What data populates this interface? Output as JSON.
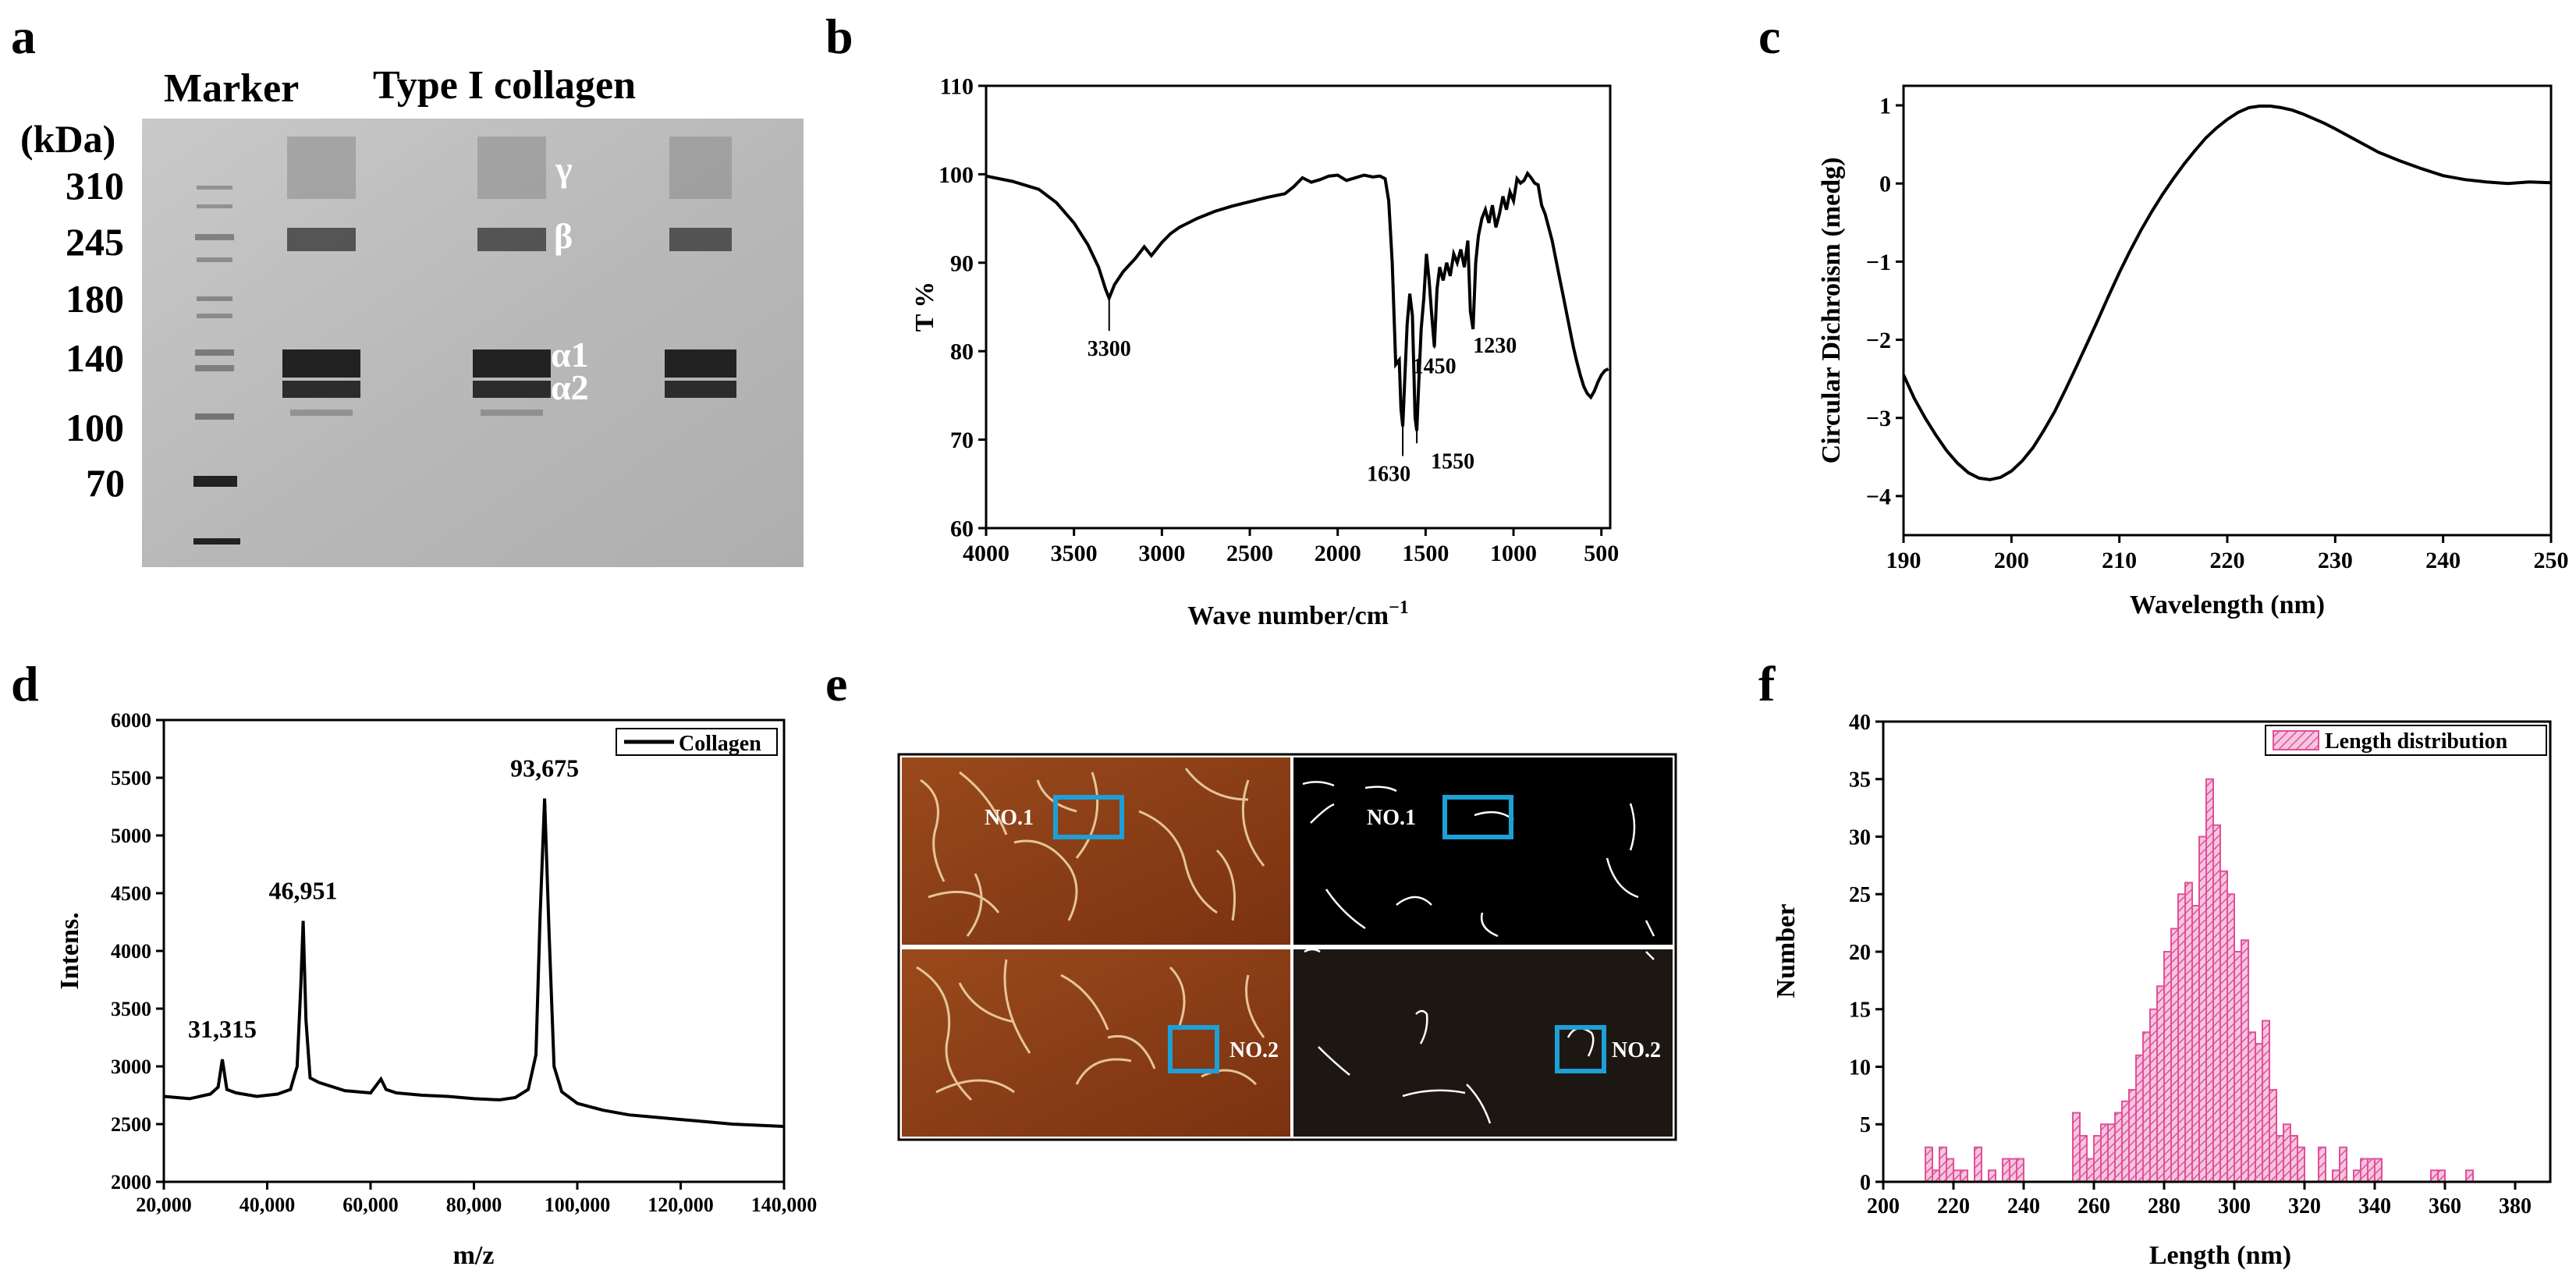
{
  "chart_data": [
    {
      "panel": "a",
      "type": "other",
      "description_free": true,
      "header_marker": "Marker",
      "header_sample": "Type I collagen",
      "unit_label": "(kDa)",
      "marker_sizes": [
        "310",
        "245",
        "180",
        "140",
        "100",
        "70"
      ],
      "band_labels": [
        "γ",
        "β",
        "α1",
        "α2"
      ]
    },
    {
      "panel": "b",
      "type": "line",
      "title": "",
      "xlabel": "Wave number/cm",
      "xlabel_sup": "−1",
      "ylabel": "T %",
      "xlim": [
        4000,
        450
      ],
      "ylim": [
        60,
        110
      ],
      "xticks": [
        4000,
        3500,
        3000,
        2500,
        2000,
        1500,
        1000,
        500
      ],
      "yticks": [
        60,
        70,
        80,
        90,
        100,
        110
      ],
      "x": [
        4000,
        3850,
        3700,
        3600,
        3500,
        3420,
        3360,
        3320,
        3300,
        3270,
        3220,
        3150,
        3100,
        3060,
        3000,
        2950,
        2900,
        2800,
        2700,
        2600,
        2500,
        2400,
        2300,
        2250,
        2200,
        2150,
        2100,
        2050,
        2000,
        1950,
        1900,
        1850,
        1800,
        1760,
        1730,
        1710,
        1690,
        1670,
        1650,
        1640,
        1630,
        1620,
        1605,
        1590,
        1575,
        1560,
        1550,
        1540,
        1525,
        1510,
        1495,
        1480,
        1465,
        1450,
        1435,
        1420,
        1400,
        1380,
        1360,
        1340,
        1320,
        1300,
        1280,
        1260,
        1245,
        1230,
        1215,
        1200,
        1180,
        1160,
        1140,
        1120,
        1100,
        1080,
        1060,
        1040,
        1020,
        1000,
        980,
        960,
        940,
        920,
        900,
        880,
        860,
        840,
        820,
        800,
        780,
        760,
        740,
        720,
        700,
        680,
        660,
        640,
        620,
        600,
        580,
        560,
        540,
        520,
        500,
        480,
        460
      ],
      "y": [
        99.8,
        99.2,
        98.3,
        96.8,
        94.5,
        92.0,
        89.5,
        87.0,
        86.0,
        87.5,
        89.0,
        90.5,
        91.8,
        90.8,
        92.3,
        93.3,
        94.0,
        95.0,
        95.8,
        96.4,
        96.9,
        97.4,
        97.8,
        98.6,
        99.6,
        99.1,
        99.4,
        99.8,
        99.9,
        99.3,
        99.6,
        99.9,
        99.7,
        99.8,
        99.5,
        97.0,
        90.0,
        78.5,
        79.0,
        73.5,
        71.5,
        76.0,
        83.0,
        86.5,
        84.0,
        72.5,
        71.0,
        76.0,
        82.5,
        86.0,
        91.0,
        88.0,
        84.0,
        80.5,
        87.0,
        89.5,
        88.0,
        90.0,
        88.5,
        91.0,
        90.0,
        91.5,
        89.5,
        92.5,
        84.5,
        82.5,
        90.0,
        93.0,
        95.0,
        96.0,
        94.5,
        96.5,
        94.0,
        95.5,
        97.5,
        96.0,
        98.0,
        97.0,
        99.5,
        99.0,
        99.3,
        100.1,
        99.6,
        99.0,
        98.8,
        96.5,
        95.5,
        94.0,
        92.5,
        90.5,
        88.5,
        86.5,
        84.5,
        82.5,
        80.5,
        78.8,
        77.3,
        76.0,
        75.2,
        74.8,
        75.5,
        76.5,
        77.3,
        77.8,
        78.0
      ],
      "annotations": [
        {
          "label": "3300",
          "x": 3300,
          "y": 86.0
        },
        {
          "label": "1630",
          "x": 1630,
          "y": 71.5
        },
        {
          "label": "1550",
          "x": 1550,
          "y": 71.0
        },
        {
          "label": "1450",
          "x": 1450,
          "y": 80.5
        },
        {
          "label": "1230",
          "x": 1230,
          "y": 82.5
        }
      ]
    },
    {
      "panel": "c",
      "type": "line",
      "title": "",
      "xlabel": "Wavelength (nm)",
      "ylabel": "Circular Dichroism (medg)",
      "xlim": [
        190,
        250
      ],
      "ylim": [
        -4.5,
        1.25
      ],
      "xticks": [
        190,
        200,
        210,
        220,
        230,
        240,
        250
      ],
      "yticks": [
        -4,
        -3,
        -2,
        -1,
        0,
        1
      ],
      "x": [
        190,
        191,
        192,
        193,
        194,
        195,
        196,
        197,
        198,
        199,
        200,
        201,
        202,
        203,
        204,
        205,
        206,
        207,
        208,
        209,
        210,
        211,
        212,
        213,
        214,
        215,
        216,
        217,
        218,
        219,
        220,
        221,
        222,
        223,
        224,
        225,
        226,
        227,
        228,
        229,
        230,
        232,
        234,
        236,
        238,
        240,
        242,
        244,
        246,
        248,
        250
      ],
      "y": [
        -2.45,
        -2.75,
        -3.0,
        -3.22,
        -3.42,
        -3.58,
        -3.7,
        -3.77,
        -3.79,
        -3.76,
        -3.68,
        -3.55,
        -3.38,
        -3.16,
        -2.92,
        -2.64,
        -2.35,
        -2.05,
        -1.75,
        -1.44,
        -1.14,
        -0.86,
        -0.6,
        -0.36,
        -0.14,
        0.06,
        0.25,
        0.42,
        0.58,
        0.71,
        0.82,
        0.91,
        0.97,
        0.99,
        0.99,
        0.97,
        0.94,
        0.89,
        0.83,
        0.77,
        0.7,
        0.55,
        0.4,
        0.29,
        0.19,
        0.1,
        0.05,
        0.02,
        0.0,
        0.02,
        0.01
      ]
    },
    {
      "panel": "d",
      "type": "line",
      "title": "",
      "xlabel": "m/z",
      "ylabel": "Intens.",
      "xlim": [
        20000,
        140000
      ],
      "ylim": [
        2000,
        6000
      ],
      "xticks": [
        20000,
        40000,
        60000,
        80000,
        100000,
        120000,
        140000
      ],
      "xtick_labels": [
        "20,000",
        "40,000",
        "60,000",
        "80,000",
        "100,000",
        "120,000",
        "140,000"
      ],
      "yticks": [
        2000,
        2500,
        3000,
        3500,
        4000,
        4500,
        5000,
        5500,
        6000
      ],
      "legend": [
        "Collagen"
      ],
      "legend_position": "top-right",
      "x": [
        20000,
        25000,
        29000,
        30500,
        31315,
        32200,
        34000,
        38000,
        42000,
        44500,
        45800,
        46500,
        46951,
        47500,
        48300,
        50000,
        55000,
        60000,
        62000,
        63000,
        65000,
        70000,
        75000,
        80000,
        85000,
        88000,
        90500,
        92000,
        92800,
        93675,
        94500,
        95500,
        97000,
        100000,
        105000,
        110000,
        115000,
        120000,
        125000,
        130000,
        135000,
        140000
      ],
      "y": [
        2740,
        2720,
        2760,
        2820,
        3060,
        2800,
        2770,
        2740,
        2760,
        2800,
        3000,
        3700,
        4260,
        3400,
        2900,
        2860,
        2790,
        2770,
        2890,
        2800,
        2770,
        2750,
        2740,
        2720,
        2710,
        2730,
        2800,
        3100,
        4300,
        5320,
        4200,
        3000,
        2780,
        2680,
        2620,
        2580,
        2560,
        2540,
        2520,
        2500,
        2490,
        2480
      ],
      "annotations": [
        {
          "label": "31,315",
          "x": 31315,
          "y": 3060
        },
        {
          "label": "46,951",
          "x": 46951,
          "y": 4260
        },
        {
          "label": "93,675",
          "x": 93675,
          "y": 5320
        }
      ]
    },
    {
      "panel": "e",
      "type": "other",
      "labels": [
        "NO.1",
        "NO.1",
        "NO.2",
        "NO.2"
      ],
      "colors": {
        "afm": "#8a3c14",
        "afm_dark": "#5e220a",
        "mask": "#000000",
        "mask2": "#1d1714",
        "highlight": "#1e9fd6"
      }
    },
    {
      "panel": "f",
      "type": "bar",
      "title": "",
      "xlabel": "Length (nm)",
      "ylabel": "Number",
      "xlim": [
        200,
        390
      ],
      "ylim": [
        0,
        40
      ],
      "xticks": [
        200,
        220,
        240,
        260,
        280,
        300,
        320,
        340,
        360,
        380
      ],
      "yticks": [
        0,
        5,
        10,
        15,
        20,
        25,
        30,
        35,
        40
      ],
      "legend": [
        "Length distribution"
      ],
      "legend_position": "top-right",
      "bin_width": 2,
      "bin_starts": [
        212,
        214,
        216,
        218,
        220,
        222,
        224,
        226,
        228,
        230,
        232,
        234,
        236,
        238,
        240,
        242,
        244,
        246,
        248,
        250,
        252,
        254,
        256,
        258,
        260,
        262,
        264,
        266,
        268,
        270,
        272,
        274,
        276,
        278,
        280,
        282,
        284,
        286,
        288,
        290,
        292,
        294,
        296,
        298,
        300,
        302,
        304,
        306,
        308,
        310,
        312,
        314,
        316,
        318,
        320,
        322,
        324,
        326,
        328,
        330,
        332,
        334,
        336,
        338,
        340,
        342,
        344,
        346,
        348,
        350,
        352,
        354,
        356,
        358,
        360,
        362,
        364,
        366,
        368,
        370,
        372,
        374,
        376,
        378
      ],
      "values": [
        3,
        1,
        3,
        2,
        1,
        1,
        0,
        3,
        0,
        1,
        0,
        2,
        2,
        2,
        0,
        0,
        0,
        0,
        0,
        0,
        0,
        6,
        4,
        2,
        4,
        5,
        5,
        6,
        7,
        8,
        11,
        13,
        15,
        17,
        20,
        22,
        25,
        26,
        24,
        30,
        35,
        31,
        27,
        25,
        20,
        21,
        13,
        12,
        14,
        8,
        4,
        5,
        4,
        3,
        0,
        0,
        3,
        0,
        1,
        3,
        0,
        1,
        2,
        2,
        2,
        0,
        0,
        0,
        0,
        0,
        0,
        0,
        1,
        1,
        0,
        0,
        0,
        1,
        0,
        0,
        0,
        0,
        0,
        0
      ],
      "colors": {
        "bar": "#e0509a",
        "bar_fill": "#f4b8d6"
      }
    }
  ],
  "panel_letters": [
    "a",
    "b",
    "c",
    "d",
    "e",
    "f"
  ]
}
